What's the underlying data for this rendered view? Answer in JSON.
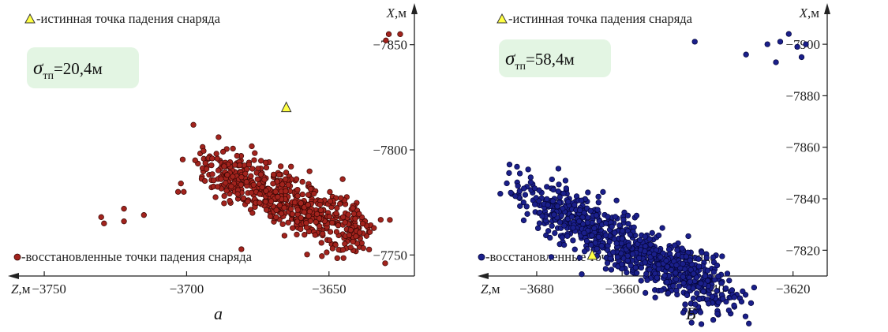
{
  "chart_data": [
    {
      "type": "scatter",
      "panel_label": "а",
      "xlabel": "Z,м",
      "ylabel": "X,м",
      "x_reversed": true,
      "xlim": [
        -3760,
        -3620
      ],
      "ylim": [
        -7740,
        -7860
      ],
      "xticks": [
        -3750,
        -3700,
        -3650
      ],
      "xtick_labels": [
        "−3750",
        "−3700",
        "−3650"
      ],
      "yticks": [
        -7750,
        -7800,
        -7850
      ],
      "ytick_labels": [
        "−7750",
        "−7800",
        "−7850"
      ],
      "sigma_label": "=20,4м",
      "sigma_symbol": "σ",
      "sigma_sub": "тп",
      "point_color": "#a2231d",
      "point_stroke": "#3a0805",
      "true_point": {
        "x": -3665,
        "y": -7820,
        "legend": "-истинная точка падения снаряда",
        "color": "#ffff44"
      },
      "series": [
        {
          "name": "-восстановленные точки падения снаряда",
          "cloud": {
            "n": 600,
            "x_range": [
              -3700,
              -3630
            ],
            "slope": 0.57,
            "y_at_start": -7796,
            "spread": 7,
            "seed": 11
          },
          "outliers": [
            [
              -3730,
              -7768
            ],
            [
              -3729,
              -7765
            ],
            [
              -3722,
              -7772
            ],
            [
              -3722,
              -7766
            ],
            [
              -3715,
              -7769
            ],
            [
              -3703,
              -7780
            ],
            [
              -3701,
              -7780
            ],
            [
              -3702,
              -7784
            ],
            [
              -3697,
              -7795
            ],
            [
              -3629,
              -7855
            ],
            [
              -3625,
              -7855
            ],
            [
              -3630,
              -7852
            ]
          ]
        }
      ],
      "caption": "а"
    },
    {
      "type": "scatter",
      "panel_label": "Б",
      "xlabel": "Z,м",
      "ylabel": "X,м",
      "x_reversed": true,
      "xlim": [
        -3692,
        -3612
      ],
      "ylim": [
        -7810,
        -7908
      ],
      "xticks": [
        -3680,
        -3660,
        -3640,
        -3620
      ],
      "xtick_labels": [
        "−3680",
        "−3660",
        "−3640",
        "−3620"
      ],
      "yticks": [
        -7820,
        -7840,
        -7860,
        -7880,
        -7900
      ],
      "ytick_labels": [
        "−7820",
        "−7840",
        "−7860",
        "−7880",
        "−7900"
      ],
      "sigma_label": "=58,4м",
      "sigma_symbol": "σ",
      "sigma_sub": "тп",
      "point_color": "#1a1f8a",
      "point_stroke": "#05063a",
      "true_point": {
        "x": -3667,
        "y": -7818,
        "legend": "-истинная точка падения снаряда",
        "color": "#ffff44"
      },
      "series": [
        {
          "name": "-восстановленные точки падения снаряда",
          "cloud": {
            "n": 850,
            "x_range": [
              -3688,
              -3628
            ],
            "slope": 0.83,
            "y_at_start": -7846,
            "spread": 6,
            "seed": 29
          },
          "outliers": [
            [
              -3687,
              -7846
            ],
            [
              -3684,
              -7843
            ],
            [
              -3685,
              -7841
            ],
            [
              -3683,
              -7844
            ],
            [
              -3626,
              -7900
            ],
            [
              -3623,
              -7901
            ],
            [
              -3621,
              -7904
            ],
            [
              -3619,
              -7899
            ],
            [
              -3618,
              -7895
            ],
            [
              -3617,
              -7900
            ],
            [
              -3624,
              -7893
            ],
            [
              -3631,
              -7896
            ],
            [
              -3643,
              -7901
            ]
          ]
        }
      ],
      "caption": "Б"
    }
  ]
}
